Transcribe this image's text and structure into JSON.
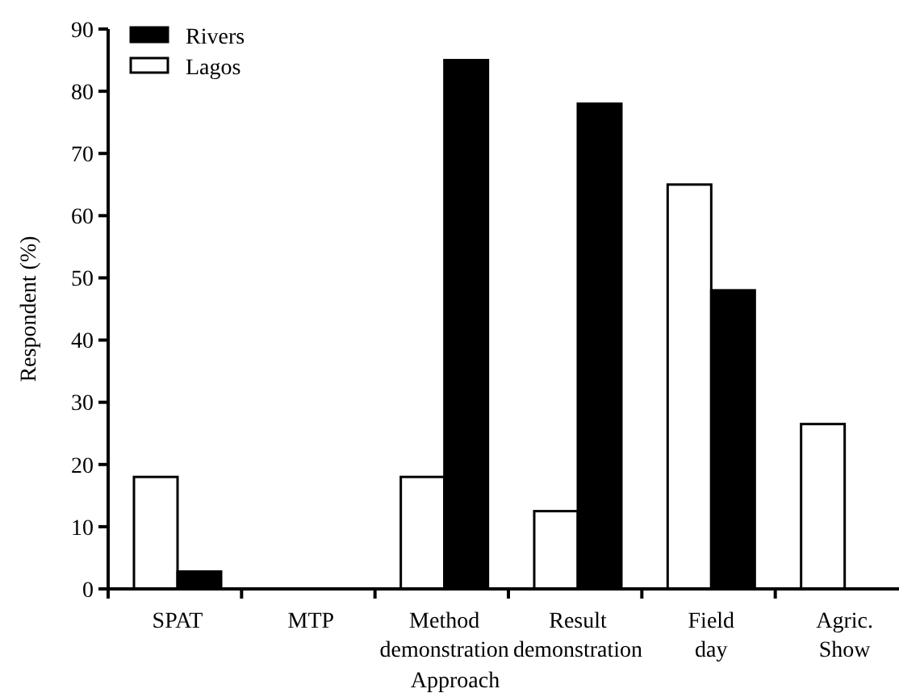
{
  "chart_data": {
    "type": "bar",
    "xlabel": "Approach",
    "ylabel": "Respondent (%)",
    "categories": [
      "SPAT",
      "MTP",
      "Method demonstration",
      "Result demonstration",
      "Field day",
      "Agric. Show"
    ],
    "series": [
      {
        "name": "Lagos",
        "color": "#ffffff",
        "values": [
          18,
          0,
          18,
          12.5,
          65,
          26.5
        ]
      },
      {
        "name": "Rivers",
        "color": "#000000",
        "values": [
          2.8,
          0,
          85,
          78,
          48,
          0
        ]
      }
    ],
    "ylim": [
      0,
      90
    ],
    "yticks": [
      0,
      10,
      20,
      30,
      40,
      50,
      60,
      70,
      80,
      90
    ],
    "grid": false,
    "legend": "top left"
  }
}
